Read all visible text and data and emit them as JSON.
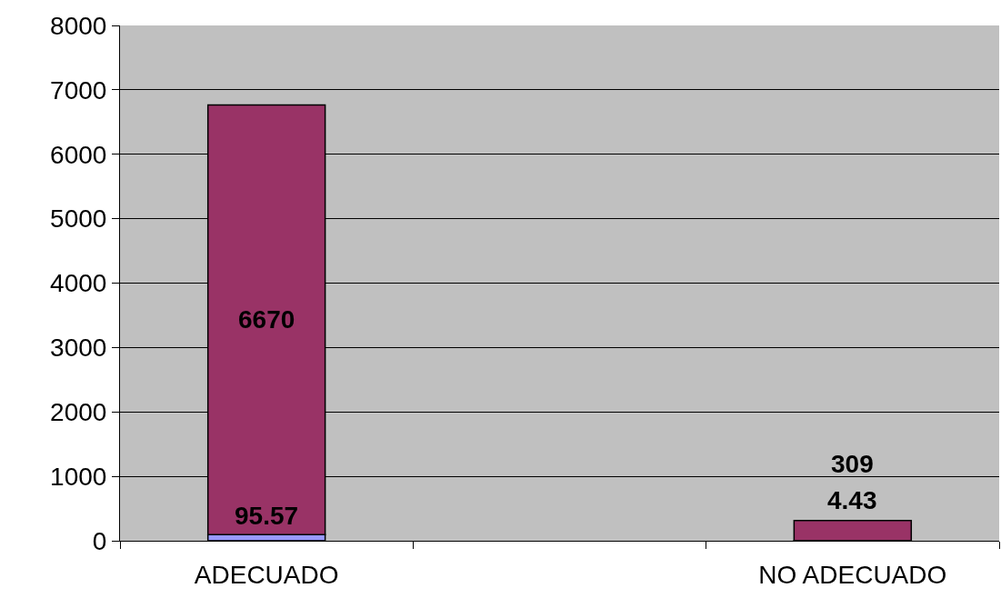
{
  "chart_data": {
    "type": "bar",
    "stacked": true,
    "categories": [
      "ADECUADO",
      null,
      "NO ADECUADO"
    ],
    "series": [
      {
        "color": "#9999ff",
        "values": [
          95.57,
          null,
          4.43
        ]
      },
      {
        "color": "#993366",
        "values": [
          6670,
          null,
          309
        ]
      }
    ],
    "ylim": [
      0,
      8000
    ],
    "yticks": [
      0,
      1000,
      2000,
      3000,
      4000,
      5000,
      6000,
      7000,
      8000
    ],
    "grid": "y",
    "data_labels": true
  }
}
